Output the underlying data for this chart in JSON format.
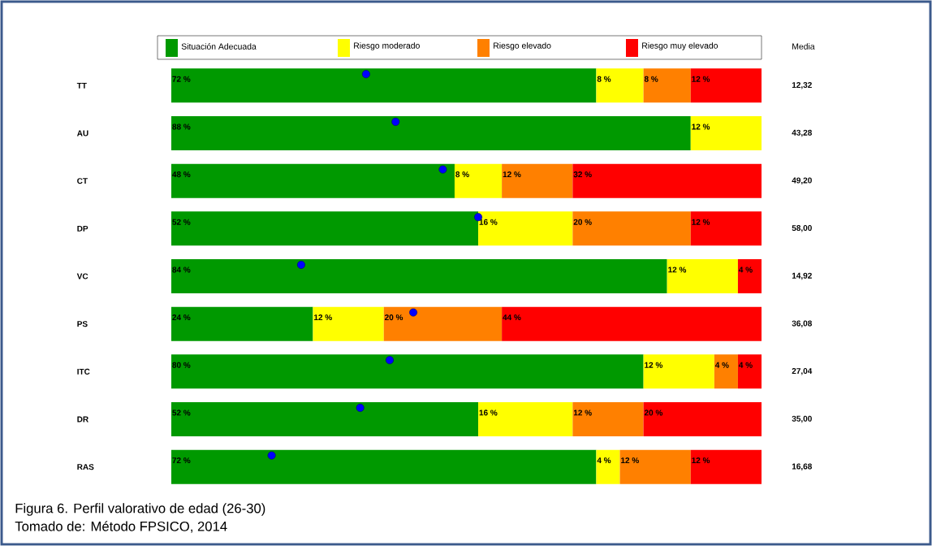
{
  "chart_data": {
    "type": "bar",
    "orientation": "horizontal",
    "stacked": true,
    "legend": "top",
    "tick_labels": "y",
    "xlim": [
      0,
      100
    ],
    "categories": [
      "TT",
      "AU",
      "CT",
      "DP",
      "VC",
      "PS",
      "ITC",
      "DR",
      "RAS"
    ],
    "series": [
      {
        "name": "Situación Adecuada",
        "color": "#009900",
        "values": [
          72,
          88,
          48,
          52,
          84,
          24,
          80,
          52,
          72
        ],
        "value_labels": [
          "72 %",
          "88 %",
          "48 %",
          "52 %",
          "84 %",
          "24 %",
          "80 %",
          "52 %",
          "72 %"
        ]
      },
      {
        "name": "Riesgo moderado",
        "color": "#ffff00",
        "values": [
          8,
          12,
          8,
          16,
          12,
          12,
          12,
          16,
          4
        ],
        "value_labels": [
          "8 %",
          "12 %",
          "8 %",
          "16 %",
          "12 %",
          "12 %",
          "12 %",
          "16 %",
          "4 %"
        ]
      },
      {
        "name": "Riesgo elevado",
        "color": "#ff8000",
        "values": [
          8,
          0,
          12,
          20,
          0,
          20,
          4,
          12,
          12
        ],
        "value_labels": [
          "8 %",
          null,
          "12 %",
          "20 %",
          null,
          "20 %",
          "4 %",
          "12 %",
          "12 %"
        ]
      },
      {
        "name": "Riesgo muy elevado",
        "color": "#ff0000",
        "values": [
          12,
          0,
          32,
          12,
          4,
          44,
          4,
          20,
          12
        ],
        "value_labels": [
          "12 %",
          null,
          "32 %",
          "12 %",
          "4 %",
          "44 %",
          "4 %",
          "20 %",
          "12 %"
        ]
      },
      {
        "type": "scatter",
        "color": "#0000ff",
        "marker": "circle",
        "x": [
          "TT",
          "AU",
          "CT",
          "DP",
          "VC",
          "PS",
          "ITC",
          "DR",
          "RAS"
        ],
        "values": [
          33,
          38,
          46,
          52,
          22,
          41,
          37,
          32,
          17
        ]
      }
    ],
    "annotations": [
      "Media",
      "12,32",
      "43,28",
      "49,20",
      "58,00",
      "14,92",
      "36,08",
      "27,04",
      "35,00",
      "16,68",
      "Figura 6. Perfil valorativo de edad (26-30)",
      "Tomado de: Método FPSICO, 2014"
    ]
  }
}
